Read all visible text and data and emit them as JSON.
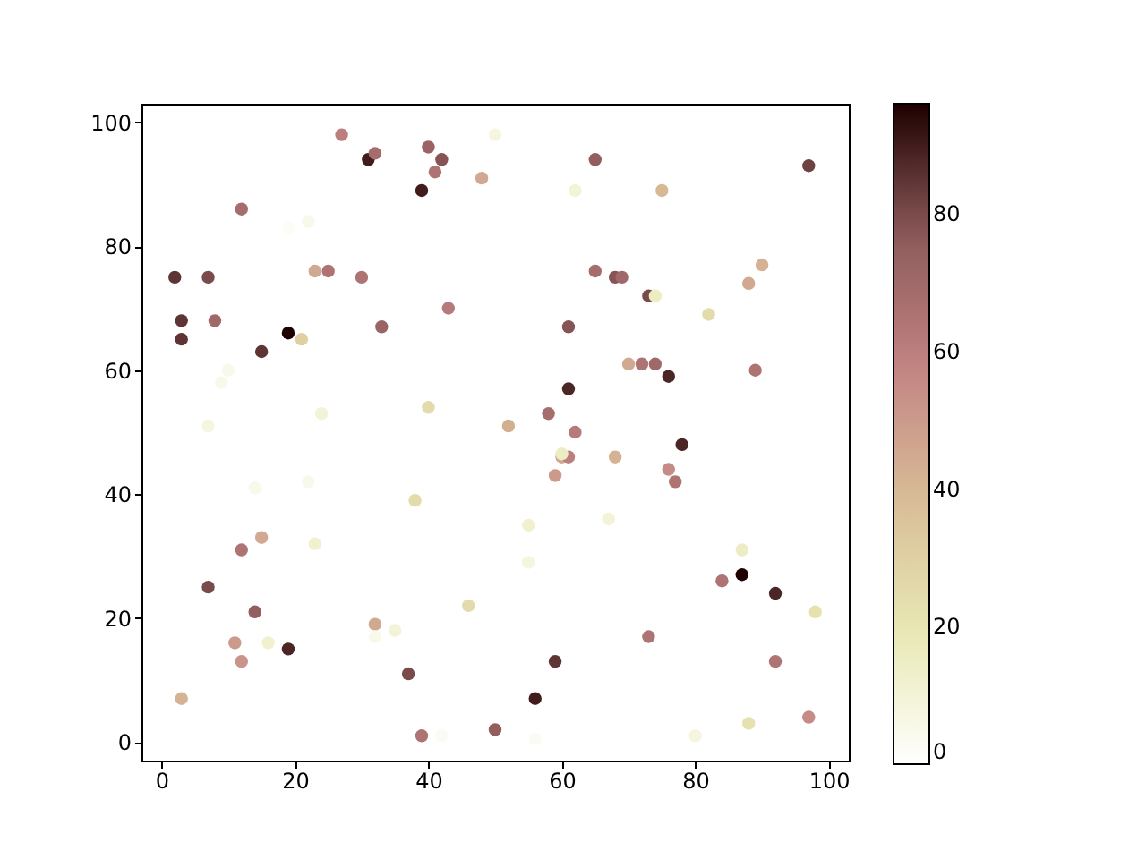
{
  "chart_data": {
    "type": "scatter",
    "marker": "circle",
    "x": [
      2,
      3,
      3,
      7,
      8,
      12,
      15,
      19,
      21,
      23,
      25,
      27,
      30,
      31,
      32,
      33,
      39,
      40,
      41,
      42,
      43,
      48,
      50,
      22,
      19,
      62,
      65,
      75,
      97,
      65,
      68,
      69,
      73,
      74,
      61,
      61,
      70,
      72,
      74,
      76,
      82,
      88,
      90,
      89,
      58,
      62,
      78,
      60,
      61,
      60,
      59,
      68,
      52,
      76,
      77,
      40,
      24,
      9,
      10,
      7,
      38,
      14,
      22,
      15,
      12,
      23,
      7,
      14,
      11,
      16,
      12,
      19,
      32,
      35,
      32,
      3,
      37,
      39,
      42,
      46,
      50,
      55,
      55,
      56,
      59,
      67,
      73,
      80,
      84,
      87,
      87,
      88,
      92,
      92,
      97,
      98,
      56
    ],
    "values": [
      75,
      68,
      65,
      75,
      68,
      86,
      63,
      66,
      65,
      76,
      76,
      98,
      75,
      94,
      95,
      67,
      89,
      96,
      92,
      94,
      70,
      91,
      98,
      84,
      83,
      89,
      94,
      89,
      93,
      76,
      75,
      75,
      72,
      72,
      67,
      57,
      61,
      61,
      61,
      59,
      69,
      74,
      77,
      60,
      53,
      50,
      48,
      46,
      46,
      46.5,
      43,
      46,
      51,
      44,
      42,
      54,
      53,
      58,
      60,
      51,
      39,
      41,
      42,
      33,
      31,
      32,
      25,
      21,
      16,
      16,
      13,
      15,
      19,
      18,
      17,
      7,
      11,
      1,
      1,
      22,
      2,
      35,
      29,
      7,
      13,
      36,
      17,
      1,
      26,
      27,
      31,
      3,
      24,
      13,
      4,
      21,
      0.5
    ],
    "cvalues": [
      85,
      85,
      85,
      80,
      70,
      68,
      85,
      96,
      30,
      45,
      65,
      60,
      65,
      90,
      68,
      72,
      90,
      72,
      65,
      78,
      62,
      45,
      8,
      5,
      2,
      10,
      75,
      40,
      82,
      68,
      78,
      70,
      80,
      15,
      78,
      88,
      45,
      65,
      70,
      88,
      25,
      45,
      42,
      65,
      68,
      62,
      88,
      45,
      60,
      15,
      50,
      42,
      43,
      55,
      65,
      25,
      10,
      5,
      5,
      8,
      25,
      5,
      5,
      45,
      65,
      12,
      80,
      75,
      50,
      12,
      52,
      88,
      45,
      10,
      5,
      42,
      80,
      65,
      3,
      25,
      75,
      12,
      8,
      90,
      85,
      10,
      65,
      8,
      65,
      96,
      15,
      22,
      88,
      65,
      55,
      22,
      3
    ],
    "xlim": [
      -3,
      103
    ],
    "ylim": [
      -3,
      103
    ],
    "xticks": [
      0,
      20,
      40,
      60,
      80,
      100
    ],
    "yticks": [
      0,
      20,
      40,
      60,
      80,
      100
    ],
    "clim": [
      0,
      96
    ],
    "cticks": [
      0,
      20,
      40,
      60,
      80
    ],
    "grid": false
  }
}
